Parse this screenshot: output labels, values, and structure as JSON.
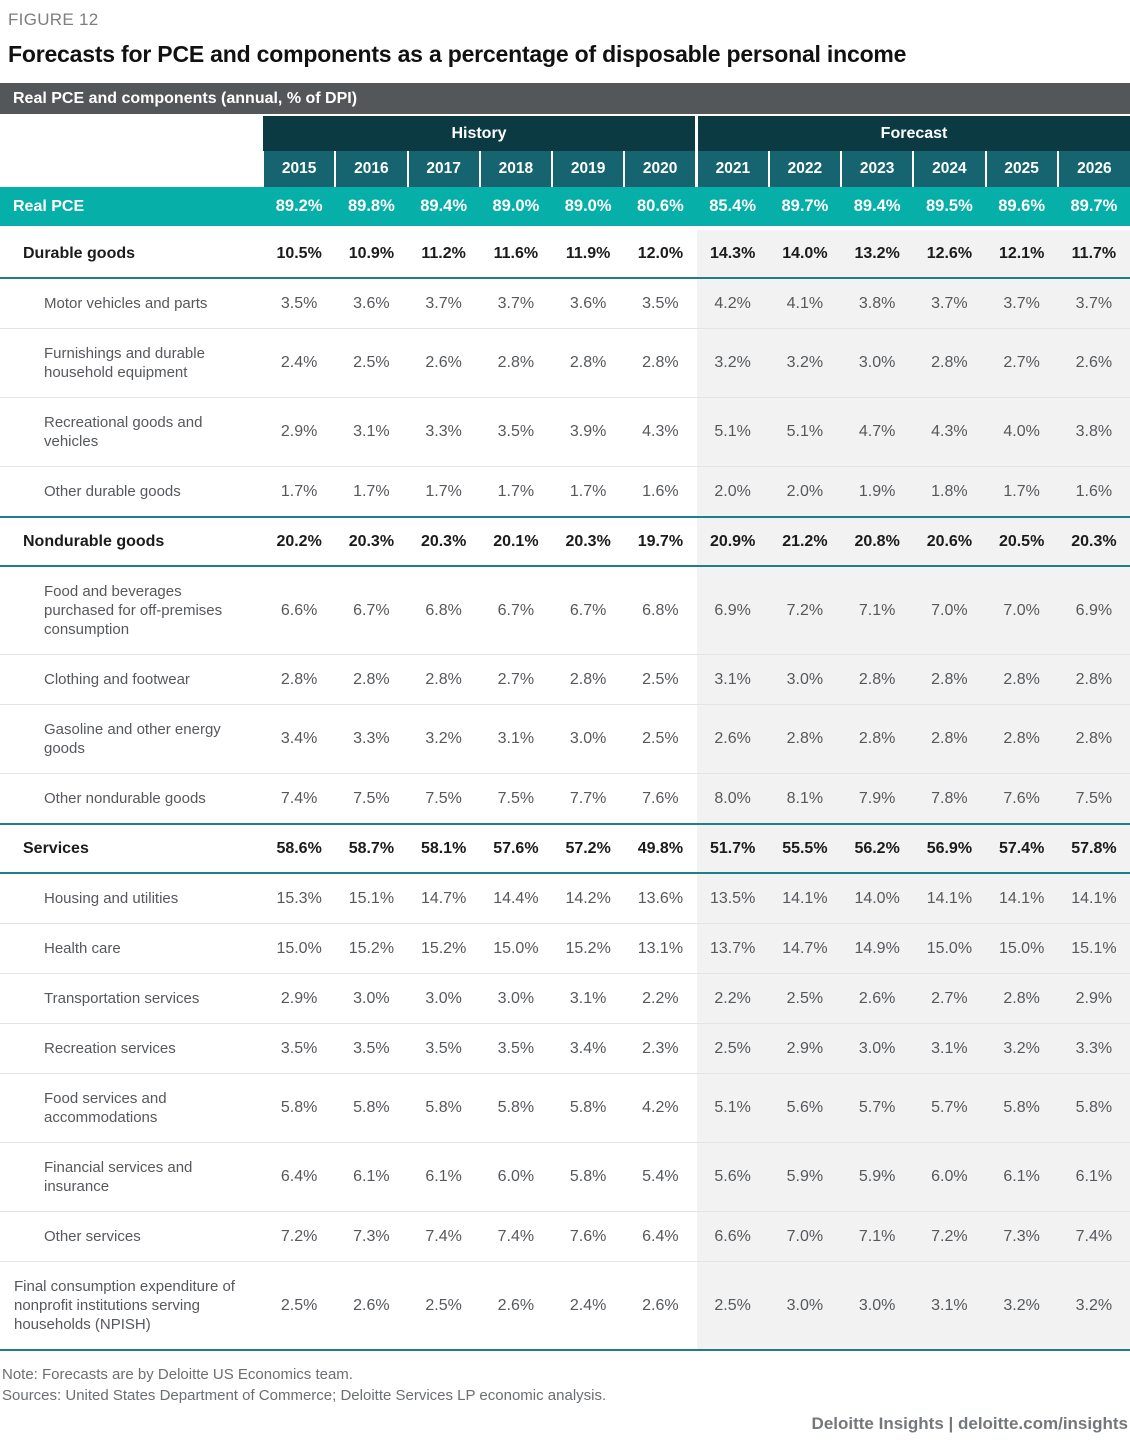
{
  "figure_label": "FIGURE 12",
  "title": "Forecasts for PCE and components as a percentage of disposable personal income",
  "chart_data": {
    "type": "table",
    "title": "Real PCE and components (annual, % of DPI)",
    "unit": "% of disposable personal income",
    "column_groups": [
      {
        "label": "History",
        "years": [
          "2015",
          "2016",
          "2017",
          "2018",
          "2019",
          "2020"
        ]
      },
      {
        "label": "Forecast",
        "years": [
          "2021",
          "2022",
          "2023",
          "2024",
          "2025",
          "2026"
        ]
      }
    ],
    "rows": [
      {
        "label": "Real PCE",
        "style": "total",
        "history": [
          "89.2%",
          "89.8%",
          "89.4%",
          "89.0%",
          "89.0%",
          "80.6%"
        ],
        "forecast": [
          "85.4%",
          "89.7%",
          "89.4%",
          "89.5%",
          "89.6%",
          "89.7%"
        ]
      },
      {
        "label": "Durable goods",
        "style": "section",
        "history": [
          "10.5%",
          "10.9%",
          "11.2%",
          "11.6%",
          "11.9%",
          "12.0%"
        ],
        "forecast": [
          "14.3%",
          "14.0%",
          "13.2%",
          "12.6%",
          "12.1%",
          "11.7%"
        ]
      },
      {
        "label": "Motor vehicles and parts",
        "style": "sub",
        "history": [
          "3.5%",
          "3.6%",
          "3.7%",
          "3.7%",
          "3.6%",
          "3.5%"
        ],
        "forecast": [
          "4.2%",
          "4.1%",
          "3.8%",
          "3.7%",
          "3.7%",
          "3.7%"
        ]
      },
      {
        "label": "Furnishings and durable household equipment",
        "style": "sub",
        "history": [
          "2.4%",
          "2.5%",
          "2.6%",
          "2.8%",
          "2.8%",
          "2.8%"
        ],
        "forecast": [
          "3.2%",
          "3.2%",
          "3.0%",
          "2.8%",
          "2.7%",
          "2.6%"
        ]
      },
      {
        "label": "Recreational goods and vehicles",
        "style": "sub",
        "history": [
          "2.9%",
          "3.1%",
          "3.3%",
          "3.5%",
          "3.9%",
          "4.3%"
        ],
        "forecast": [
          "5.1%",
          "5.1%",
          "4.7%",
          "4.3%",
          "4.0%",
          "3.8%"
        ]
      },
      {
        "label": "Other durable goods",
        "style": "sub",
        "history": [
          "1.7%",
          "1.7%",
          "1.7%",
          "1.7%",
          "1.7%",
          "1.6%"
        ],
        "forecast": [
          "2.0%",
          "2.0%",
          "1.9%",
          "1.8%",
          "1.7%",
          "1.6%"
        ]
      },
      {
        "label": "Nondurable goods",
        "style": "section",
        "teal_top": true,
        "history": [
          "20.2%",
          "20.3%",
          "20.3%",
          "20.1%",
          "20.3%",
          "19.7%"
        ],
        "forecast": [
          "20.9%",
          "21.2%",
          "20.8%",
          "20.6%",
          "20.5%",
          "20.3%"
        ]
      },
      {
        "label": "Food and beverages purchased for off-premises consumption",
        "style": "sub",
        "history": [
          "6.6%",
          "6.7%",
          "6.8%",
          "6.7%",
          "6.7%",
          "6.8%"
        ],
        "forecast": [
          "6.9%",
          "7.2%",
          "7.1%",
          "7.0%",
          "7.0%",
          "6.9%"
        ]
      },
      {
        "label": "Clothing and footwear",
        "style": "sub",
        "history": [
          "2.8%",
          "2.8%",
          "2.8%",
          "2.7%",
          "2.8%",
          "2.5%"
        ],
        "forecast": [
          "3.1%",
          "3.0%",
          "2.8%",
          "2.8%",
          "2.8%",
          "2.8%"
        ]
      },
      {
        "label": "Gasoline and other energy goods",
        "style": "sub",
        "history": [
          "3.4%",
          "3.3%",
          "3.2%",
          "3.1%",
          "3.0%",
          "2.5%"
        ],
        "forecast": [
          "2.6%",
          "2.8%",
          "2.8%",
          "2.8%",
          "2.8%",
          "2.8%"
        ]
      },
      {
        "label": "Other nondurable goods",
        "style": "sub",
        "history": [
          "7.4%",
          "7.5%",
          "7.5%",
          "7.5%",
          "7.7%",
          "7.6%"
        ],
        "forecast": [
          "8.0%",
          "8.1%",
          "7.9%",
          "7.8%",
          "7.6%",
          "7.5%"
        ]
      },
      {
        "label": "Services",
        "style": "section",
        "teal_top": true,
        "history": [
          "58.6%",
          "58.7%",
          "58.1%",
          "57.6%",
          "57.2%",
          "49.8%"
        ],
        "forecast": [
          "51.7%",
          "55.5%",
          "56.2%",
          "56.9%",
          "57.4%",
          "57.8%"
        ]
      },
      {
        "label": "Housing and utilities",
        "style": "sub",
        "history": [
          "15.3%",
          "15.1%",
          "14.7%",
          "14.4%",
          "14.2%",
          "13.6%"
        ],
        "forecast": [
          "13.5%",
          "14.1%",
          "14.0%",
          "14.1%",
          "14.1%",
          "14.1%"
        ]
      },
      {
        "label": "Health care",
        "style": "sub",
        "history": [
          "15.0%",
          "15.2%",
          "15.2%",
          "15.0%",
          "15.2%",
          "13.1%"
        ],
        "forecast": [
          "13.7%",
          "14.7%",
          "14.9%",
          "15.0%",
          "15.0%",
          "15.1%"
        ]
      },
      {
        "label": "Transportation services",
        "style": "sub",
        "history": [
          "2.9%",
          "3.0%",
          "3.0%",
          "3.0%",
          "3.1%",
          "2.2%"
        ],
        "forecast": [
          "2.2%",
          "2.5%",
          "2.6%",
          "2.7%",
          "2.8%",
          "2.9%"
        ]
      },
      {
        "label": "Recreation services",
        "style": "sub",
        "history": [
          "3.5%",
          "3.5%",
          "3.5%",
          "3.5%",
          "3.4%",
          "2.3%"
        ],
        "forecast": [
          "2.5%",
          "2.9%",
          "3.0%",
          "3.1%",
          "3.2%",
          "3.3%"
        ]
      },
      {
        "label": "Food services and accommodations",
        "style": "sub",
        "history": [
          "5.8%",
          "5.8%",
          "5.8%",
          "5.8%",
          "5.8%",
          "4.2%"
        ],
        "forecast": [
          "5.1%",
          "5.6%",
          "5.7%",
          "5.7%",
          "5.8%",
          "5.8%"
        ]
      },
      {
        "label": "Financial services and insurance",
        "style": "sub",
        "history": [
          "6.4%",
          "6.1%",
          "6.1%",
          "6.0%",
          "5.8%",
          "5.4%"
        ],
        "forecast": [
          "5.6%",
          "5.9%",
          "5.9%",
          "6.0%",
          "6.1%",
          "6.1%"
        ]
      },
      {
        "label": "Other services",
        "style": "sub",
        "history": [
          "7.2%",
          "7.3%",
          "7.4%",
          "7.4%",
          "7.6%",
          "6.4%"
        ],
        "forecast": [
          "6.6%",
          "7.0%",
          "7.1%",
          "7.2%",
          "7.3%",
          "7.4%"
        ]
      },
      {
        "label": "Final consumption expenditure of nonprofit institutions serving households (NPISH)",
        "style": "npish",
        "teal_bottom": true,
        "history": [
          "2.5%",
          "2.6%",
          "2.5%",
          "2.6%",
          "2.4%",
          "2.6%"
        ],
        "forecast": [
          "2.5%",
          "3.0%",
          "3.0%",
          "3.1%",
          "3.2%",
          "3.2%"
        ]
      }
    ]
  },
  "notes": {
    "note": "Note: Forecasts are by Deloitte US Economics team.",
    "sources": "Sources: United States Department of Commerce; Deloitte Services LP economic analysis."
  },
  "footer": "Deloitte Insights | deloitte.com/insights",
  "colors": {
    "slate": "#53575A",
    "bandTeal": "#0B3A42",
    "yearTeal": "#156470",
    "accent": "#06B0A9",
    "sectionBorder": "#1E7F8C",
    "fcstBg": "#F2F2F2"
  }
}
